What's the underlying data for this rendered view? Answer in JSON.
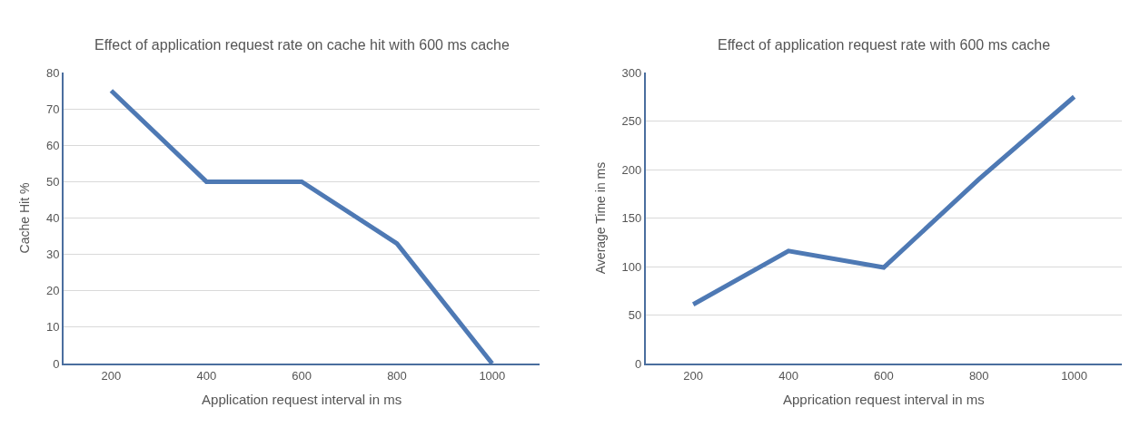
{
  "chart_data": [
    {
      "type": "line",
      "title": "Effect of application request rate on cache hit with 600 ms cache",
      "xlabel": "Application request interval in ms",
      "ylabel": "Cache Hit %",
      "categories": [
        "200",
        "400",
        "600",
        "800",
        "1000"
      ],
      "series": [
        {
          "color": "#4e79b4",
          "values": [
            75,
            50,
            50,
            33,
            0
          ]
        }
      ],
      "ylim": [
        0,
        80
      ],
      "yticks": [
        0,
        10,
        20,
        30,
        40,
        50,
        60,
        70,
        80
      ],
      "grid": "y",
      "marker": "none",
      "line_style": "solid"
    },
    {
      "type": "line",
      "title": "Effect of application request rate with 600 ms cache",
      "xlabel": "Apprication request interval in ms",
      "ylabel": "Average Time in ms",
      "categories": [
        "200",
        "400",
        "600",
        "800",
        "1000"
      ],
      "series": [
        {
          "color": "#4e79b4",
          "values": [
            61,
            116,
            99,
            190,
            275
          ]
        }
      ],
      "ylim": [
        0,
        300
      ],
      "yticks": [
        0,
        50,
        100,
        150,
        200,
        250,
        300
      ],
      "grid": "y",
      "marker": "none",
      "line_style": "solid"
    }
  ]
}
